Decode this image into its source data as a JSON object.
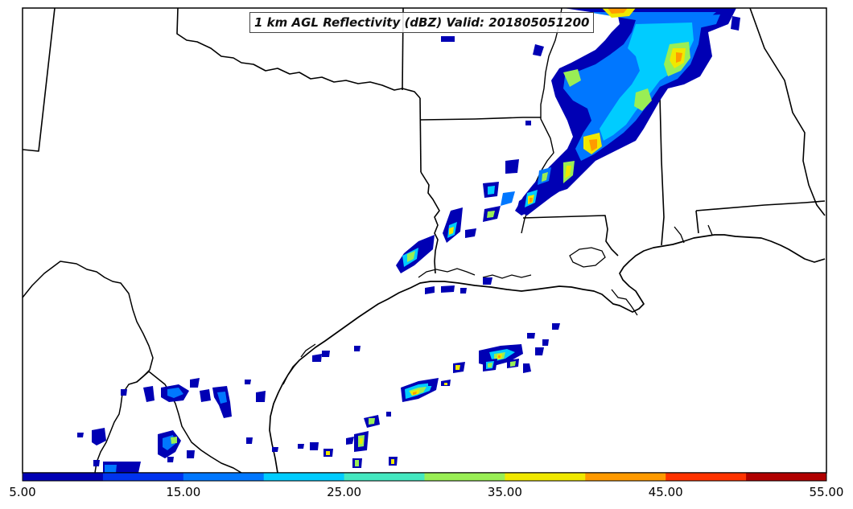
{
  "map": {
    "title": "1 km AGL Reflectivity (dBZ) Valid: 201805051200"
  },
  "colorbar": {
    "colors": [
      "#0000b4",
      "#0033ee",
      "#0077ff",
      "#00ccff",
      "#44e8c0",
      "#99ee55",
      "#f0e800",
      "#ff9a00",
      "#ff3300",
      "#b00000"
    ],
    "tick_labels": [
      "5.00",
      "15.00",
      "25.00",
      "35.00",
      "45.00",
      "55.00"
    ]
  },
  "chart_data": {
    "type": "heatmap",
    "title": "1 km AGL Reflectivity (dBZ) Valid: 201805051200",
    "variable": "1 km AGL Reflectivity",
    "units": "dBZ",
    "valid": "201805051200",
    "colorbar_range": [
      5,
      55
    ],
    "colorbar_interval": 5
  }
}
